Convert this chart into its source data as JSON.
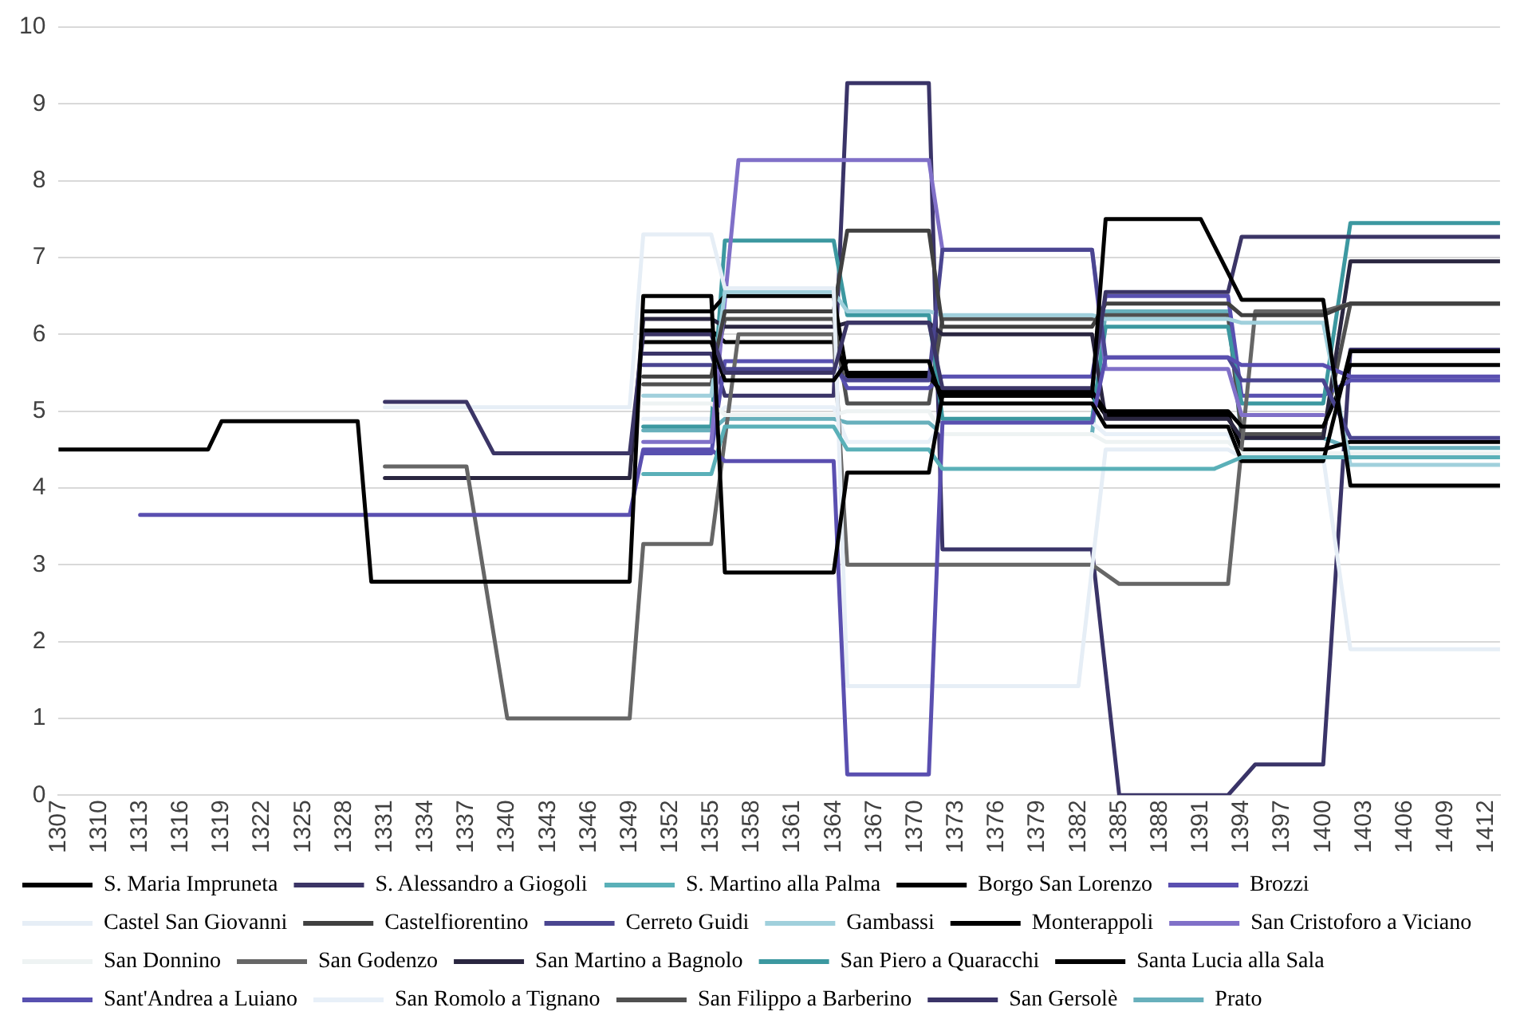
{
  "chart_data": {
    "type": "line",
    "xlim": [
      1307,
      1413
    ],
    "xticks": [
      1307,
      1310,
      1313,
      1316,
      1319,
      1322,
      1325,
      1328,
      1331,
      1334,
      1337,
      1340,
      1343,
      1346,
      1349,
      1352,
      1355,
      1358,
      1361,
      1364,
      1367,
      1370,
      1373,
      1376,
      1379,
      1382,
      1385,
      1388,
      1391,
      1394,
      1397,
      1400,
      1403,
      1406,
      1409,
      1412
    ],
    "ylim": [
      0,
      10
    ],
    "yticks": [
      0,
      1,
      2,
      3,
      4,
      5,
      6,
      7,
      8,
      9,
      10
    ],
    "grid": "y",
    "legend": "bottom",
    "marker": "none",
    "line_style": "solid",
    "series": [
      {
        "name": "S. Maria Impruneta",
        "color": "#000000",
        "x": [
          1307,
          1318,
          1319,
          1329,
          1330,
          1349,
          1350,
          1355,
          1356,
          1364,
          1365,
          1371,
          1372,
          1383,
          1384,
          1391,
          1394,
          1400,
          1402,
          1413
        ],
        "values": [
          4.5,
          4.5,
          4.87,
          4.87,
          2.78,
          2.78,
          6.5,
          6.5,
          2.9,
          2.9,
          4.2,
          4.2,
          5.2,
          5.2,
          7.5,
          7.5,
          6.45,
          6.45,
          4.03,
          4.03
        ]
      },
      {
        "name": "S. Alessandro a Giogoli",
        "color": "#3b3566",
        "x": [
          1331,
          1337,
          1339,
          1349,
          1350,
          1355,
          1356,
          1364,
          1365,
          1371,
          1372,
          1383,
          1384,
          1393,
          1394,
          1413
        ],
        "values": [
          5.12,
          5.12,
          4.45,
          4.45,
          6.0,
          6.0,
          5.5,
          5.5,
          6.15,
          6.15,
          5.3,
          5.3,
          6.55,
          6.55,
          7.27,
          7.27
        ]
      },
      {
        "name": "S. Martino alla Palma",
        "color": "#5ab0b8",
        "x": [
          1350,
          1355,
          1356,
          1364,
          1365,
          1371,
          1372,
          1382,
          1384,
          1392,
          1394,
          1413
        ],
        "values": [
          4.18,
          4.18,
          4.8,
          4.8,
          4.5,
          4.5,
          4.25,
          4.25,
          4.25,
          4.25,
          4.4,
          4.4
        ]
      },
      {
        "name": "Borgo San Lorenzo",
        "color": "#000000",
        "x": [
          1350,
          1355,
          1356,
          1364,
          1365,
          1371,
          1372,
          1383,
          1384,
          1393,
          1394,
          1400,
          1402,
          1413
        ],
        "values": [
          5.9,
          5.9,
          5.4,
          5.4,
          5.65,
          5.65,
          5.1,
          5.1,
          4.8,
          4.8,
          4.35,
          4.35,
          5.78,
          5.78
        ]
      },
      {
        "name": "Brozzi",
        "color": "#5a4fb0",
        "x": [
          1313,
          1349,
          1350,
          1355,
          1356,
          1364,
          1365,
          1371,
          1372,
          1383,
          1384,
          1393,
          1394,
          1400,
          1402,
          1413
        ],
        "values": [
          3.65,
          3.65,
          4.5,
          4.5,
          4.35,
          4.35,
          0.27,
          0.27,
          4.85,
          4.85,
          5.7,
          5.7,
          5.6,
          5.6,
          5.45,
          5.45
        ]
      },
      {
        "name": "Castel San Giovanni",
        "color": "#e6eef6",
        "x": [
          1331,
          1349,
          1350,
          1355,
          1356,
          1364,
          1365,
          1382,
          1384,
          1393,
          1394,
          1400,
          1402,
          1413
        ],
        "values": [
          5.05,
          5.05,
          7.3,
          7.3,
          6.6,
          6.6,
          1.42,
          1.42,
          4.5,
          4.5,
          4.4,
          4.4,
          1.9,
          1.9
        ]
      },
      {
        "name": "Castelfiorentino",
        "color": "#404040",
        "x": [
          1350,
          1355,
          1356,
          1364,
          1365,
          1371,
          1372,
          1383,
          1384,
          1393,
          1394,
          1400,
          1402,
          1413
        ],
        "values": [
          5.45,
          5.45,
          6.3,
          6.3,
          7.35,
          7.35,
          6.1,
          6.1,
          6.4,
          6.4,
          6.25,
          6.25,
          6.4,
          6.4
        ]
      },
      {
        "name": "Cerreto Guidi",
        "color": "#4a4590",
        "x": [
          1350,
          1355,
          1356,
          1364,
          1365,
          1371,
          1372,
          1383,
          1384,
          1393,
          1394,
          1400,
          1402,
          1413
        ],
        "values": [
          5.6,
          5.6,
          5.55,
          5.55,
          5.4,
          5.4,
          7.1,
          7.1,
          5.7,
          5.7,
          5.4,
          5.4,
          4.65,
          4.65
        ]
      },
      {
        "name": "Gambassi",
        "color": "#a0d0dc",
        "x": [
          1350,
          1355,
          1356,
          1364,
          1365,
          1371,
          1372,
          1383,
          1384,
          1393,
          1394,
          1400,
          1402,
          1413
        ],
        "values": [
          5.2,
          5.2,
          6.55,
          6.55,
          6.3,
          6.3,
          6.25,
          6.25,
          6.2,
          6.2,
          6.15,
          6.15,
          4.3,
          4.3
        ]
      },
      {
        "name": "Monterappoli",
        "color": "#000000",
        "x": [
          1350,
          1355,
          1356,
          1364,
          1365,
          1371,
          1372,
          1383,
          1384,
          1393,
          1394,
          1400,
          1402,
          1413
        ],
        "values": [
          6.3,
          6.3,
          6.5,
          6.5,
          5.45,
          5.45,
          5.25,
          5.25,
          5.0,
          5.0,
          4.8,
          4.8,
          5.6,
          5.6
        ]
      },
      {
        "name": "San Cristoforo a Viciano",
        "color": "#8070c8",
        "x": [
          1350,
          1355,
          1357,
          1371,
          1372,
          1383,
          1384,
          1393,
          1394,
          1400
        ],
        "values": [
          4.6,
          4.6,
          8.27,
          8.27,
          7.1,
          7.1,
          5.55,
          5.55,
          4.95,
          4.95
        ]
      },
      {
        "name": "San Donnino",
        "color": "#eef3f3",
        "x": [
          1350,
          1355,
          1356,
          1364,
          1365,
          1371,
          1372,
          1383,
          1384,
          1393,
          1394,
          1413
        ],
        "values": [
          5.1,
          5.1,
          4.95,
          4.95,
          5.0,
          5.0,
          4.7,
          4.7,
          4.6,
          4.6,
          4.45,
          4.45
        ]
      },
      {
        "name": "San Godenzo",
        "color": "#666666",
        "x": [
          1331,
          1337,
          1340,
          1349,
          1350,
          1355,
          1357,
          1364,
          1365,
          1383,
          1385,
          1393,
          1395,
          1400,
          1402,
          1413
        ],
        "values": [
          4.28,
          4.28,
          1.0,
          1.0,
          3.27,
          3.27,
          6.0,
          6.0,
          3.0,
          3.0,
          2.75,
          2.75,
          6.3,
          6.3,
          6.4,
          6.4
        ]
      },
      {
        "name": "San Martino a Bagnolo",
        "color": "#2a2640",
        "x": [
          1331,
          1349,
          1350,
          1355,
          1356,
          1364,
          1365,
          1371,
          1372,
          1383,
          1384,
          1393,
          1394,
          1400,
          1402,
          1413
        ],
        "values": [
          4.13,
          4.13,
          6.2,
          6.2,
          6.1,
          6.1,
          6.15,
          6.15,
          6.0,
          6.0,
          4.9,
          4.9,
          4.65,
          4.65,
          6.95,
          6.95
        ]
      },
      {
        "name": "San Piero a Quaracchi",
        "color": "#3c98a0",
        "x": [
          1350,
          1355,
          1356,
          1364,
          1365,
          1371,
          1372,
          1383,
          1384,
          1393,
          1394,
          1400,
          1402,
          1413
        ],
        "values": [
          4.8,
          4.8,
          7.22,
          7.22,
          6.25,
          6.25,
          4.9,
          4.9,
          6.1,
          6.1,
          5.1,
          5.1,
          7.45,
          7.45
        ]
      },
      {
        "name": "Santa Lucia alla Sala",
        "color": "#000000",
        "x": [
          1350,
          1355,
          1356,
          1364,
          1365,
          1371,
          1372,
          1383,
          1384,
          1393,
          1394,
          1400,
          1402,
          1413
        ],
        "values": [
          6.05,
          6.05,
          5.9,
          5.9,
          5.5,
          5.5,
          5.2,
          5.2,
          4.95,
          4.95,
          4.5,
          4.5,
          4.6,
          4.6
        ]
      },
      {
        "name": "Sant'Andrea a Luiano",
        "color": "#5850b0",
        "x": [
          1350,
          1355,
          1356,
          1364,
          1365,
          1371,
          1372,
          1383,
          1384,
          1393,
          1394,
          1400,
          1402,
          1413
        ],
        "values": [
          4.45,
          4.45,
          5.65,
          5.65,
          5.3,
          5.3,
          5.45,
          5.45,
          6.5,
          6.5,
          5.2,
          5.2,
          5.4,
          5.4
        ]
      },
      {
        "name": "San Romolo a Tignano",
        "color": "#e8f0f8",
        "x": [
          1350,
          1355,
          1356,
          1364,
          1365,
          1371,
          1372,
          1383,
          1384,
          1393,
          1394,
          1413
        ],
        "values": [
          4.9,
          4.9,
          5.05,
          5.05,
          4.6,
          4.6,
          4.85,
          4.85,
          4.7,
          4.7,
          4.4,
          4.4
        ]
      },
      {
        "name": "San Filippo a Barberino",
        "color": "#505050",
        "x": [
          1350,
          1355,
          1356,
          1364,
          1365,
          1371,
          1372,
          1383,
          1384,
          1393,
          1394,
          1400,
          1402,
          1413
        ],
        "values": [
          5.35,
          5.35,
          6.2,
          6.2,
          5.1,
          5.1,
          6.2,
          6.2,
          6.25,
          6.25,
          4.7,
          4.7,
          6.4,
          6.4
        ]
      },
      {
        "name": "San Gersolè",
        "color": "#3a3468",
        "x": [
          1350,
          1355,
          1356,
          1364,
          1365,
          1371,
          1372,
          1383,
          1385,
          1393,
          1395,
          1400,
          1402,
          1413
        ],
        "values": [
          5.75,
          5.75,
          5.2,
          5.2,
          9.27,
          9.27,
          3.2,
          3.2,
          0,
          0,
          0.4,
          0.4,
          5.8,
          5.8
        ]
      },
      {
        "name": "Prato",
        "color": "#68b0bc",
        "x": [
          1350,
          1355,
          1356,
          1364,
          1365,
          1371,
          1372,
          1383,
          1384,
          1393,
          1394,
          1400,
          1402,
          1413
        ],
        "values": [
          4.75,
          4.75,
          4.9,
          4.9,
          4.85,
          4.85,
          4.7,
          4.7,
          6.3,
          6.3,
          4.65,
          4.65,
          4.52,
          4.52
        ]
      }
    ]
  }
}
